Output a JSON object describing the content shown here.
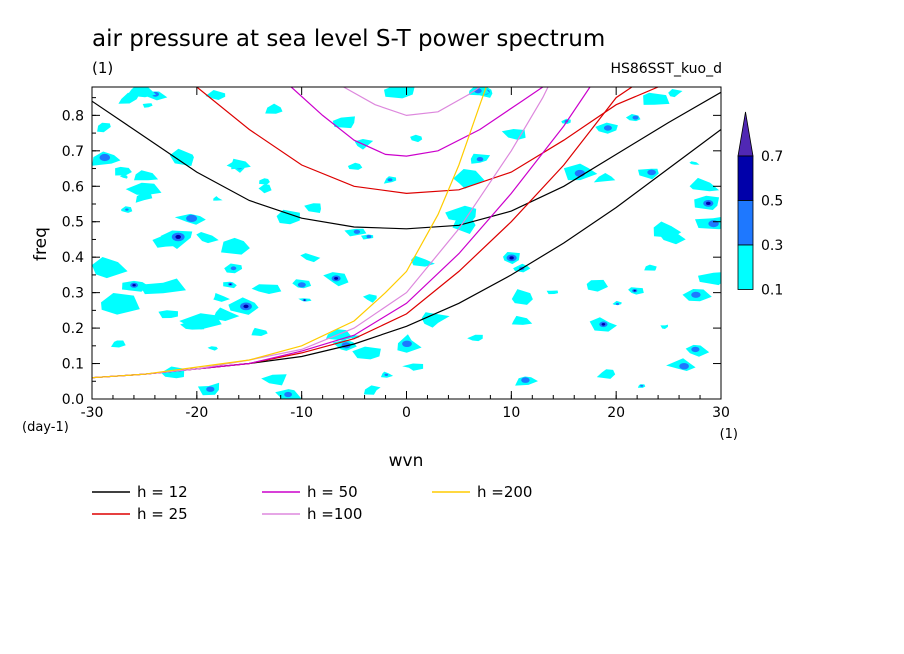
{
  "chart_data": {
    "type": "contour",
    "title": "air pressure at sea level S-T power spectrum",
    "title_units": "(1)",
    "run_label": "HS86SST_kuo_d",
    "xlabel": "wvn",
    "xlabel_units": "(1)",
    "ylabel": "freq",
    "ylabel_units": "(day-1)",
    "xlim": [
      -30,
      30
    ],
    "ylim": [
      0,
      0.88
    ],
    "x_ticks": [
      -30,
      -20,
      -10,
      0,
      10,
      20,
      30
    ],
    "y_ticks": [
      0.0,
      0.1,
      0.2,
      0.3,
      0.4,
      0.5,
      0.6,
      0.7,
      0.8
    ],
    "x_tick_labels": [
      "-30",
      "-20",
      "-10",
      "0",
      "10",
      "20",
      "30"
    ],
    "y_tick_labels": [
      "0.0",
      "0.1",
      "0.2",
      "0.3",
      "0.4",
      "0.5",
      "0.6",
      "0.7",
      "0.8"
    ],
    "colorbar": {
      "levels": [
        "0.1",
        "0.3",
        "0.5",
        "0.7"
      ],
      "colors": [
        "#00ffff",
        "#1e78ff",
        "#0000aa",
        "#5028b4"
      ]
    },
    "series": [
      {
        "name": "h = 12",
        "color": "#000000",
        "points": [
          [
            -30,
            0.84
          ],
          [
            -25,
            0.74
          ],
          [
            -20,
            0.64
          ],
          [
            -15,
            0.56
          ],
          [
            -10,
            0.51
          ],
          [
            -5,
            0.485
          ],
          [
            0,
            0.48
          ],
          [
            5,
            0.49
          ],
          [
            10,
            0.53
          ],
          [
            15,
            0.6
          ],
          [
            20,
            0.69
          ],
          [
            25,
            0.78
          ],
          [
            30,
            0.865
          ]
        ]
      },
      {
        "name": "h = 12",
        "color": "#000000",
        "points": [
          [
            -30,
            0.06
          ],
          [
            -25,
            0.07
          ],
          [
            -20,
            0.085
          ],
          [
            -15,
            0.1
          ],
          [
            -10,
            0.12
          ],
          [
            -5,
            0.155
          ],
          [
            0,
            0.205
          ],
          [
            5,
            0.27
          ],
          [
            10,
            0.35
          ],
          [
            15,
            0.44
          ],
          [
            20,
            0.54
          ],
          [
            25,
            0.65
          ],
          [
            30,
            0.76
          ]
        ]
      },
      {
        "name": "h = 25",
        "color": "#dd0000",
        "points": [
          [
            -20,
            0.88
          ],
          [
            -15,
            0.76
          ],
          [
            -10,
            0.66
          ],
          [
            -5,
            0.6
          ],
          [
            0,
            0.58
          ],
          [
            5,
            0.59
          ],
          [
            10,
            0.64
          ],
          [
            15,
            0.73
          ],
          [
            20,
            0.83
          ],
          [
            24,
            0.88
          ]
        ]
      },
      {
        "name": "h = 25",
        "color": "#dd0000",
        "points": [
          [
            -30,
            0.06
          ],
          [
            -25,
            0.07
          ],
          [
            -20,
            0.085
          ],
          [
            -15,
            0.1
          ],
          [
            -10,
            0.13
          ],
          [
            -5,
            0.17
          ],
          [
            0,
            0.24
          ],
          [
            5,
            0.36
          ],
          [
            10,
            0.5
          ],
          [
            15,
            0.66
          ],
          [
            20,
            0.85
          ],
          [
            21.5,
            0.88
          ]
        ]
      },
      {
        "name": "h = 50",
        "color": "#cc00cc",
        "points": [
          [
            -11,
            0.88
          ],
          [
            -8,
            0.8
          ],
          [
            -5,
            0.73
          ],
          [
            -2,
            0.69
          ],
          [
            0,
            0.685
          ],
          [
            3,
            0.7
          ],
          [
            7,
            0.76
          ],
          [
            11,
            0.84
          ],
          [
            13,
            0.88
          ]
        ]
      },
      {
        "name": "h = 50",
        "color": "#cc00cc",
        "points": [
          [
            -30,
            0.06
          ],
          [
            -25,
            0.07
          ],
          [
            -20,
            0.085
          ],
          [
            -15,
            0.1
          ],
          [
            -10,
            0.135
          ],
          [
            -5,
            0.18
          ],
          [
            0,
            0.27
          ],
          [
            5,
            0.41
          ],
          [
            10,
            0.58
          ],
          [
            15,
            0.77
          ],
          [
            17.5,
            0.88
          ]
        ]
      },
      {
        "name": "h =100",
        "color": "#dd88dd",
        "points": [
          [
            -6,
            0.88
          ],
          [
            -3,
            0.83
          ],
          [
            0,
            0.8
          ],
          [
            3,
            0.81
          ],
          [
            6,
            0.86
          ],
          [
            7,
            0.88
          ]
        ]
      },
      {
        "name": "h =100",
        "color": "#dd88dd",
        "points": [
          [
            -30,
            0.06
          ],
          [
            -25,
            0.07
          ],
          [
            -20,
            0.085
          ],
          [
            -15,
            0.11
          ],
          [
            -10,
            0.14
          ],
          [
            -5,
            0.2
          ],
          [
            0,
            0.3
          ],
          [
            5,
            0.48
          ],
          [
            10,
            0.7
          ],
          [
            13,
            0.85
          ],
          [
            13.5,
            0.88
          ]
        ]
      },
      {
        "name": "h =200",
        "color": "#ffcc00",
        "points": [
          [
            -30,
            0.06
          ],
          [
            -25,
            0.07
          ],
          [
            -20,
            0.09
          ],
          [
            -15,
            0.11
          ],
          [
            -10,
            0.15
          ],
          [
            -5,
            0.22
          ],
          [
            -2,
            0.3
          ],
          [
            0,
            0.36
          ],
          [
            3,
            0.52
          ],
          [
            5,
            0.66
          ],
          [
            7,
            0.83
          ],
          [
            7.6,
            0.88
          ]
        ]
      }
    ],
    "legend": [
      {
        "label": "h = 12",
        "color": "#000000"
      },
      {
        "label": "h = 25",
        "color": "#dd0000"
      },
      {
        "label": "h = 50",
        "color": "#cc00cc"
      },
      {
        "label": "h =100",
        "color": "#dd88dd"
      },
      {
        "label": "h =200",
        "color": "#ffcc00"
      }
    ],
    "legend_placement": "bottom"
  }
}
